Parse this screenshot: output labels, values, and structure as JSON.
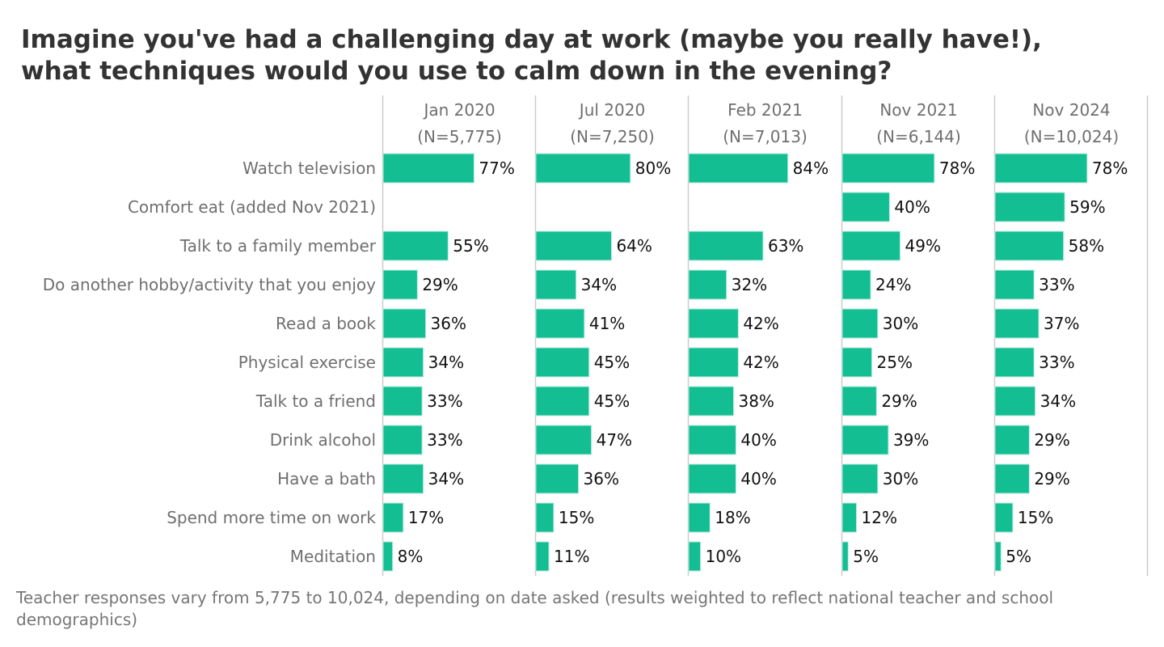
{
  "title_lines": [
    "Imagine you've had a challenging day at work (maybe you really have!),",
    "what techniques would you use to calm down in the evening?"
  ],
  "footnote": "Teacher responses vary from 5,775 to 10,024, depending on date asked (results weighted to reflect national teacher and school demographics)",
  "colors": {
    "bar": "#12be92",
    "bar_edge": "#b9ebdd",
    "category_text": "#6f6f6f",
    "value_text": "#111111",
    "panel_header": "#6f6f6f",
    "divider": "#cccccc"
  },
  "chart_data": {
    "type": "bar",
    "orientation": "horizontal",
    "small_multiples": true,
    "categories": [
      "Watch television",
      "Comfort eat (added Nov 2021)",
      "Talk to a family member",
      "Do another hobby/activity that you enjoy",
      "Read a book",
      "Physical exercise",
      "Talk to a friend",
      "Drink alcohol",
      "Have a bath",
      "Spend more time on work",
      "Meditation"
    ],
    "series": [
      {
        "name": "Jan 2020",
        "n_label": "(N=5,775)",
        "values": [
          77,
          null,
          55,
          29,
          36,
          34,
          33,
          33,
          34,
          17,
          8
        ]
      },
      {
        "name": "Jul 2020",
        "n_label": "(N=7,250)",
        "values": [
          80,
          null,
          64,
          34,
          41,
          45,
          45,
          47,
          36,
          15,
          11
        ]
      },
      {
        "name": "Feb 2021",
        "n_label": "(N=7,013)",
        "values": [
          84,
          null,
          63,
          32,
          42,
          42,
          38,
          40,
          40,
          18,
          10
        ]
      },
      {
        "name": "Nov 2021",
        "n_label": "(N=6,144)",
        "values": [
          78,
          40,
          49,
          24,
          30,
          25,
          29,
          39,
          30,
          12,
          5
        ]
      },
      {
        "name": "Nov 2024",
        "n_label": "(N=10,024)",
        "values": [
          78,
          59,
          58,
          33,
          37,
          33,
          34,
          29,
          29,
          15,
          5
        ]
      }
    ],
    "value_suffix": "%",
    "xlim": [
      0,
      100
    ],
    "grid": false,
    "legend": "none"
  }
}
